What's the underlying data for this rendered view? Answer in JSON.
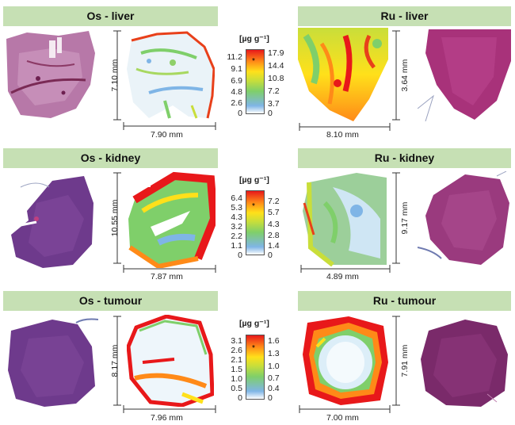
{
  "panels": {
    "os_liver": {
      "title": "Os - liver",
      "width": "7.90 mm",
      "height": "7.10 mm"
    },
    "ru_liver": {
      "title": "Ru - liver",
      "width": "8.10 mm",
      "height": "3.64 mm"
    },
    "os_kidney": {
      "title": "Os - kidney",
      "width": "7.87 mm",
      "height": "10.55 mm"
    },
    "ru_kidney": {
      "title": "Ru - kidney",
      "width": "4.89 mm",
      "height": "9.17 mm"
    },
    "os_tumour": {
      "title": "Os - tumour",
      "width": "7.96 mm",
      "height": "8.17 mm"
    },
    "ru_tumour": {
      "title": "Ru - tumour",
      "width": "7.00 mm",
      "height": "7.91 mm"
    }
  },
  "scales": [
    {
      "unit": "[µg g⁻¹]",
      "os": [
        "11.2",
        "9.1",
        "6.9",
        "4.8",
        "2.6",
        "0"
      ],
      "ru": [
        "17.9",
        "14.4",
        "10.8",
        "7.2",
        "3.7",
        "0"
      ],
      "marker": "*"
    },
    {
      "unit": "[µg g⁻¹]",
      "os": [
        "6.4",
        "5.3",
        "4.3",
        "3.2",
        "2.2",
        "1.1",
        "0"
      ],
      "ru": [
        "7.2",
        "5.7",
        "4.3",
        "2.8",
        "1.4",
        "0"
      ],
      "marker": "*"
    },
    {
      "unit": "[µg g⁻¹]",
      "os": [
        "3.1",
        "2.6",
        "2.1",
        "1.5",
        "1.0",
        "0.5",
        "0"
      ],
      "ru": [
        "1.6",
        "1.3",
        "1.0",
        "0.7",
        "0.4",
        "0"
      ],
      "marker": "*"
    }
  ],
  "colors": {
    "header_bg": "#c6e0b4",
    "scale_low": "#ffffff",
    "scale_high": "#e8181a"
  }
}
